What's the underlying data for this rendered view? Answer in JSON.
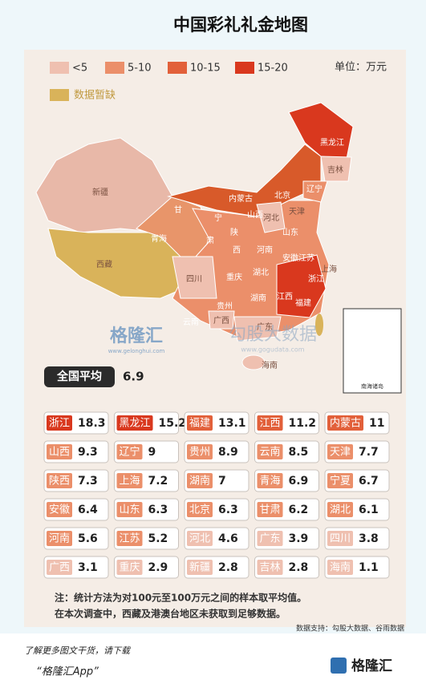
{
  "title": "中国彩礼礼金地图",
  "legend": {
    "items": [
      {
        "label": "<5",
        "color": "#efc0b0"
      },
      {
        "label": "5-10",
        "color": "#eb8f6a"
      },
      {
        "label": "10-15",
        "color": "#e2603a"
      },
      {
        "label": "15-20",
        "color": "#d9381e"
      }
    ],
    "missing": {
      "label": "数据暂缺",
      "color": "#d9b35a"
    },
    "unit": "单位：万元"
  },
  "map_labels": [
    "新疆",
    "西藏",
    "青海",
    "甘",
    "肃",
    "内蒙古",
    "黑龙江",
    "吉林",
    "辽宁",
    "北京",
    "天津",
    "河北",
    "山西",
    "宁",
    "陕",
    "西",
    "河南",
    "山东",
    "江苏",
    "安徽",
    "上海",
    "湖北",
    "四川",
    "重庆",
    "浙江",
    "江西",
    "湖南",
    "福建",
    "贵州",
    "云南",
    "广西",
    "广东",
    "海南",
    "南海诸岛"
  ],
  "watermark": {
    "brand": "格隆汇",
    "brand_url": "www.gelonghui.com",
    "partner": "勾股大数据",
    "partner_url": "www.gogudata.com"
  },
  "average": {
    "label": "全国平均",
    "value": 6.9
  },
  "ranking": [
    {
      "name": "浙江",
      "value": 18.3,
      "color": "#d9381e"
    },
    {
      "name": "黑龙江",
      "value": 15.2,
      "color": "#d9381e"
    },
    {
      "name": "福建",
      "value": 13.1,
      "color": "#e2603a"
    },
    {
      "name": "江西",
      "value": 11.2,
      "color": "#e2603a"
    },
    {
      "name": "内蒙古",
      "value": 11,
      "color": "#e2603a"
    },
    {
      "name": "山西",
      "value": 9.3,
      "color": "#eb8f6a"
    },
    {
      "name": "辽宁",
      "value": 9,
      "color": "#eb8f6a"
    },
    {
      "name": "贵州",
      "value": 8.9,
      "color": "#eb8f6a"
    },
    {
      "name": "云南",
      "value": 8.5,
      "color": "#eb8f6a"
    },
    {
      "name": "天津",
      "value": 7.7,
      "color": "#eb8f6a"
    },
    {
      "name": "陕西",
      "value": 7.3,
      "color": "#eb8f6a"
    },
    {
      "name": "上海",
      "value": 7.2,
      "color": "#eb8f6a"
    },
    {
      "name": "湖南",
      "value": 7,
      "color": "#eb8f6a"
    },
    {
      "name": "青海",
      "value": 6.9,
      "color": "#eb8f6a"
    },
    {
      "name": "宁夏",
      "value": 6.7,
      "color": "#eb8f6a"
    },
    {
      "name": "安徽",
      "value": 6.4,
      "color": "#eb8f6a"
    },
    {
      "name": "山东",
      "value": 6.3,
      "color": "#eb8f6a"
    },
    {
      "name": "北京",
      "value": 6.3,
      "color": "#eb8f6a"
    },
    {
      "name": "甘肃",
      "value": 6.2,
      "color": "#eb8f6a"
    },
    {
      "name": "湖北",
      "value": 6.1,
      "color": "#eb8f6a"
    },
    {
      "name": "河南",
      "value": 5.6,
      "color": "#eb8f6a"
    },
    {
      "name": "江苏",
      "value": 5.2,
      "color": "#eb8f6a"
    },
    {
      "name": "河北",
      "value": 4.6,
      "color": "#efc0b0"
    },
    {
      "name": "广东",
      "value": 3.9,
      "color": "#efc0b0"
    },
    {
      "name": "四川",
      "value": 3.8,
      "color": "#efc0b0"
    },
    {
      "name": "广西",
      "value": 3.1,
      "color": "#efc0b0"
    },
    {
      "name": "重庆",
      "value": 2.9,
      "color": "#efc0b0"
    },
    {
      "name": "新疆",
      "value": 2.8,
      "color": "#efc0b0"
    },
    {
      "name": "吉林",
      "value": 2.8,
      "color": "#efc0b0"
    },
    {
      "name": "海南",
      "value": 1.1,
      "color": "#efc0b0"
    }
  ],
  "notes": [
    "注：统计方法为对100元至100万元之间的样本取平均值。",
    "在本次调查中，西藏及港澳台地区未获取到足够数据。"
  ],
  "source": "数据支持：勾股大数据、谷雨数据",
  "footer": {
    "promo": "了解更多图文干货，请下载",
    "app": "“格隆汇App”",
    "logo": "格隆汇"
  }
}
